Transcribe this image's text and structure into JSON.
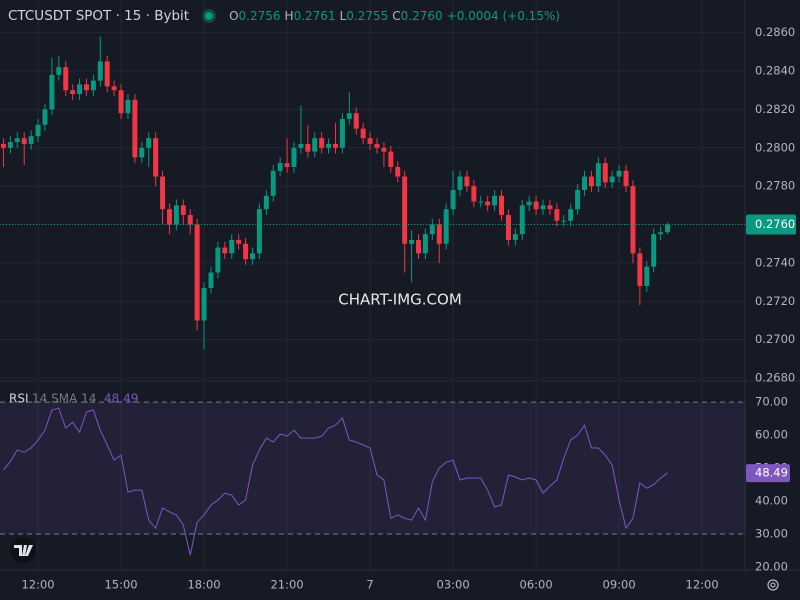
{
  "header": {
    "symbol": "CTCUSDT SPOT · 15 · Bybit",
    "o": "O",
    "open": "0.2756",
    "h": "H",
    "high": "0.2761",
    "l": "L",
    "low": "0.2755",
    "c": "C",
    "close": "0.2760",
    "change": "+0.0004 (+0.15%)"
  },
  "chart_data": {
    "type": "candlestick",
    "watermark": "CHART-IMG.COM",
    "up_color": "#089981",
    "down_color": "#f23645",
    "grid": true,
    "xlim": [
      -0.5,
      107.2
    ],
    "xticks": [
      {
        "value": 5,
        "label": "12:00"
      },
      {
        "value": 17,
        "label": "15:00"
      },
      {
        "value": 29,
        "label": "18:00"
      },
      {
        "value": 41,
        "label": "21:00"
      },
      {
        "value": 53,
        "label": "7"
      },
      {
        "value": 65,
        "label": "03:00"
      },
      {
        "value": 77,
        "label": "06:00"
      },
      {
        "value": 89,
        "label": "09:00"
      },
      {
        "value": 101,
        "label": "12:00"
      }
    ],
    "ylim": [
      0.2679,
      0.2877
    ],
    "yticks": [
      {
        "value": 0.286,
        "label": "0.2860"
      },
      {
        "value": 0.284,
        "label": "0.2840"
      },
      {
        "value": 0.282,
        "label": "0.2820"
      },
      {
        "value": 0.28,
        "label": "0.2800"
      },
      {
        "value": 0.278,
        "label": "0.2780"
      },
      {
        "value": 0.276,
        "label": "0.2760"
      },
      {
        "value": 0.274,
        "label": "0.2740"
      },
      {
        "value": 0.272,
        "label": "0.2720"
      },
      {
        "value": 0.27,
        "label": "0.2700"
      },
      {
        "value": 0.268,
        "label": "0.2680"
      }
    ],
    "last_price": {
      "value": 0.276,
      "label": "0.2760"
    },
    "open": [
      0.2802,
      0.28,
      0.2803,
      0.2805,
      0.2802,
      0.2806,
      0.2812,
      0.282,
      0.2838,
      0.2842,
      0.283,
      0.2828,
      0.2833,
      0.283,
      0.2835,
      0.2845,
      0.2832,
      0.283,
      0.2818,
      0.2825,
      0.2795,
      0.28,
      0.2805,
      0.2785,
      0.2768,
      0.276,
      0.277,
      0.2765,
      0.276,
      0.271,
      0.2727,
      0.2735,
      0.2748,
      0.2745,
      0.2752,
      0.275,
      0.2742,
      0.2745,
      0.2768,
      0.2775,
      0.2788,
      0.2792,
      0.279,
      0.28,
      0.2802,
      0.2798,
      0.2805,
      0.28,
      0.2802,
      0.28,
      0.2815,
      0.2818,
      0.281,
      0.2805,
      0.2802,
      0.28,
      0.2798,
      0.279,
      0.2785,
      0.275,
      0.2752,
      0.2745,
      0.2755,
      0.276,
      0.275,
      0.2768,
      0.2778,
      0.2785,
      0.278,
      0.2772,
      0.2772,
      0.277,
      0.2775,
      0.2765,
      0.2752,
      0.2755,
      0.277,
      0.2772,
      0.2768,
      0.277,
      0.2768,
      0.2762,
      0.2762,
      0.2768,
      0.2778,
      0.2785,
      0.278,
      0.2792,
      0.2782,
      0.2785,
      0.2788,
      0.278,
      0.2745,
      0.2728,
      0.2738,
      0.2755,
      0.2756
    ],
    "high": [
      0.2805,
      0.2806,
      0.2808,
      0.2808,
      0.2809,
      0.2815,
      0.2823,
      0.2847,
      0.2848,
      0.2845,
      0.2833,
      0.2836,
      0.2836,
      0.2838,
      0.2858,
      0.2848,
      0.2835,
      0.2833,
      0.2828,
      0.2828,
      0.2803,
      0.2808,
      0.2808,
      0.2788,
      0.2771,
      0.2773,
      0.2773,
      0.2768,
      0.2763,
      0.273,
      0.2738,
      0.2751,
      0.2751,
      0.2755,
      0.2755,
      0.2753,
      0.2748,
      0.2771,
      0.2778,
      0.2791,
      0.2795,
      0.2805,
      0.2803,
      0.2822,
      0.2812,
      0.2808,
      0.2808,
      0.2805,
      0.2813,
      0.2818,
      0.2829,
      0.2821,
      0.2813,
      0.2808,
      0.2805,
      0.2803,
      0.2801,
      0.2793,
      0.2788,
      0.2757,
      0.2755,
      0.2758,
      0.2763,
      0.2763,
      0.2771,
      0.2788,
      0.2788,
      0.2788,
      0.2783,
      0.2775,
      0.2775,
      0.2778,
      0.2778,
      0.2768,
      0.2758,
      0.2773,
      0.2775,
      0.2775,
      0.2773,
      0.2773,
      0.2771,
      0.2765,
      0.2771,
      0.2781,
      0.2788,
      0.2788,
      0.2795,
      0.2795,
      0.2788,
      0.2791,
      0.2791,
      0.2783,
      0.2748,
      0.2741,
      0.2758,
      0.2759,
      0.2761
    ],
    "low": [
      0.279,
      0.2797,
      0.28,
      0.2791,
      0.2799,
      0.2803,
      0.2809,
      0.2817,
      0.2835,
      0.2827,
      0.2825,
      0.2825,
      0.2827,
      0.2827,
      0.2832,
      0.2829,
      0.2827,
      0.2815,
      0.2815,
      0.2792,
      0.2792,
      0.279,
      0.278,
      0.276,
      0.2755,
      0.2757,
      0.276,
      0.2755,
      0.2705,
      0.2695,
      0.2724,
      0.2732,
      0.2742,
      0.2742,
      0.2747,
      0.2739,
      0.2739,
      0.2742,
      0.2765,
      0.2772,
      0.2785,
      0.2787,
      0.2787,
      0.2797,
      0.2795,
      0.2795,
      0.2797,
      0.2797,
      0.2797,
      0.2797,
      0.2812,
      0.2807,
      0.2802,
      0.2799,
      0.2797,
      0.279,
      0.2787,
      0.2782,
      0.2735,
      0.273,
      0.2742,
      0.2742,
      0.2752,
      0.274,
      0.2747,
      0.2765,
      0.2775,
      0.2777,
      0.2769,
      0.2769,
      0.2767,
      0.2767,
      0.2762,
      0.2749,
      0.2749,
      0.2752,
      0.2767,
      0.2765,
      0.2765,
      0.2765,
      0.2759,
      0.2759,
      0.2759,
      0.2765,
      0.2775,
      0.2777,
      0.2777,
      0.2779,
      0.2779,
      0.2782,
      0.2777,
      0.274,
      0.2718,
      0.2725,
      0.2735,
      0.2752,
      0.2755
    ],
    "close": [
      0.28,
      0.2803,
      0.2805,
      0.2802,
      0.2806,
      0.2812,
      0.282,
      0.2838,
      0.2842,
      0.283,
      0.2828,
      0.2833,
      0.283,
      0.2835,
      0.2845,
      0.2832,
      0.283,
      0.2818,
      0.2825,
      0.2795,
      0.28,
      0.2805,
      0.2785,
      0.2768,
      0.276,
      0.277,
      0.2765,
      0.276,
      0.271,
      0.2727,
      0.2735,
      0.2748,
      0.2745,
      0.2752,
      0.275,
      0.2742,
      0.2745,
      0.2768,
      0.2775,
      0.2788,
      0.2792,
      0.279,
      0.28,
      0.2802,
      0.2798,
      0.2805,
      0.28,
      0.2802,
      0.28,
      0.2815,
      0.2818,
      0.281,
      0.2805,
      0.2802,
      0.28,
      0.2798,
      0.279,
      0.2785,
      0.275,
      0.2752,
      0.2745,
      0.2755,
      0.276,
      0.275,
      0.2768,
      0.2778,
      0.2785,
      0.278,
      0.2772,
      0.2772,
      0.277,
      0.2775,
      0.2765,
      0.2752,
      0.2755,
      0.277,
      0.2772,
      0.2768,
      0.277,
      0.2768,
      0.2762,
      0.2762,
      0.2768,
      0.2778,
      0.2785,
      0.278,
      0.2792,
      0.2782,
      0.2785,
      0.2788,
      0.278,
      0.2745,
      0.2728,
      0.2738,
      0.2755,
      0.2756,
      0.276
    ],
    "indicator": {
      "type": "line",
      "name": "RSI",
      "params": "14 SMA 14",
      "color": "#7e57c2",
      "ylim": [
        19.1,
        76.1
      ],
      "yticks": [
        {
          "value": 70,
          "label": "70.00"
        },
        {
          "value": 60,
          "label": "60.00"
        },
        {
          "value": 50,
          "label": "50.00"
        },
        {
          "value": 40,
          "label": "40.00"
        },
        {
          "value": 30,
          "label": "30.00"
        },
        {
          "value": 20,
          "label": "20.00"
        }
      ],
      "band": [
        30,
        70
      ],
      "values": [
        49.4,
        52.0,
        55.5,
        54.8,
        56.1,
        58.5,
        61.5,
        67.6,
        68.2,
        62.1,
        63.9,
        60.9,
        67.0,
        67.6,
        61.5,
        57.0,
        52.4,
        53.9,
        42.7,
        43.3,
        43.3,
        34.2,
        31.8,
        37.9,
        36.7,
        35.8,
        32.7,
        23.6,
        33.6,
        35.8,
        38.8,
        40.3,
        42.4,
        41.8,
        38.8,
        40.3,
        50.9,
        55.5,
        59.1,
        57.9,
        60.3,
        59.7,
        61.5,
        59.1,
        59.1,
        59.1,
        59.7,
        62.1,
        63.0,
        65.2,
        58.5,
        57.9,
        57.0,
        56.1,
        47.9,
        46.4,
        34.8,
        35.8,
        34.8,
        34.2,
        37.9,
        34.2,
        45.8,
        50.0,
        51.8,
        52.4,
        46.4,
        47.0,
        47.0,
        47.0,
        43.3,
        38.2,
        38.8,
        47.9,
        47.3,
        46.4,
        47.0,
        46.4,
        42.4,
        44.5,
        46.4,
        53.0,
        58.5,
        60.0,
        63.0,
        56.1,
        56.1,
        53.9,
        50.9,
        40.3,
        31.8,
        34.8,
        45.5,
        43.9,
        45.0,
        47.0,
        48.49
      ]
    }
  }
}
